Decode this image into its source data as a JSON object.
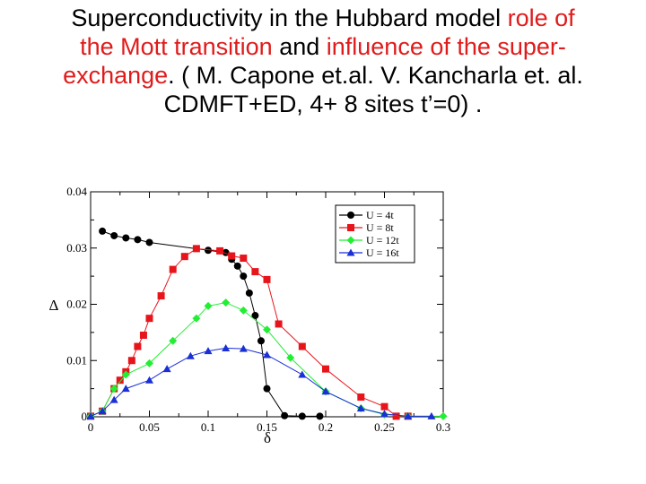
{
  "title": {
    "line1_a": "Superconductivity in the Hubbard model ",
    "line1_b": "role of",
    "line2_a": "the Mott transition",
    "line2_b": " and ",
    "line2_c": "influence of the super-",
    "line3_a": "exchange",
    "line3_b": ". ( M. Capone et.al.  V. Kancharla et. al.",
    "line4": "CDMFT+ED, 4+ 8 sites  t’=0) ."
  },
  "colors": {
    "accent_red": "#e01b1b",
    "U4": "#000000",
    "U8": "#e8141b",
    "U12": "#22ee33",
    "U16": "#1a2fd6"
  },
  "chart_data": {
    "type": "line",
    "xlabel": "δ",
    "ylabel": "Δ",
    "xlim": [
      0,
      0.3
    ],
    "ylim": [
      0,
      0.04
    ],
    "xticks": [
      0,
      0.05,
      0.1,
      0.15,
      0.2,
      0.25,
      0.3
    ],
    "xtick_labels": [
      "0",
      "0.05",
      "0.1",
      "0.15",
      "0.2",
      "0.25",
      "0.3"
    ],
    "yticks": [
      0,
      0.01,
      0.02,
      0.03,
      0.04
    ],
    "ytick_labels": [
      "0",
      "0.01",
      "0.02",
      "0.03",
      "0.04"
    ],
    "legend_position": "top-right",
    "series": [
      {
        "name": "U = 4t",
        "color": "#000000",
        "marker": "circle",
        "x": [
          0.01,
          0.02,
          0.03,
          0.04,
          0.05,
          0.1,
          0.115,
          0.12,
          0.125,
          0.13,
          0.135,
          0.14,
          0.145,
          0.15,
          0.165,
          0.18,
          0.195
        ],
        "y": [
          0.033,
          0.0322,
          0.0318,
          0.0315,
          0.031,
          0.0296,
          0.0292,
          0.028,
          0.0268,
          0.025,
          0.022,
          0.018,
          0.0135,
          0.005,
          0.0002,
          0.0001,
          0.0001
        ]
      },
      {
        "name": "U = 8t",
        "color": "#e8141b",
        "marker": "square",
        "x": [
          0,
          0.01,
          0.02,
          0.025,
          0.03,
          0.035,
          0.04,
          0.045,
          0.05,
          0.06,
          0.07,
          0.08,
          0.09,
          0.11,
          0.12,
          0.13,
          0.14,
          0.15,
          0.16,
          0.18,
          0.2,
          0.23,
          0.25,
          0.26,
          0.27
        ],
        "y": [
          0.0001,
          0.001,
          0.005,
          0.0065,
          0.008,
          0.01,
          0.0125,
          0.0145,
          0.0175,
          0.0215,
          0.0262,
          0.0285,
          0.0299,
          0.0295,
          0.0286,
          0.0282,
          0.0258,
          0.0244,
          0.0165,
          0.0125,
          0.0085,
          0.0035,
          0.0018,
          0.0001,
          0.0001
        ]
      },
      {
        "name": "U = 12t",
        "color": "#22ee33",
        "marker": "diamond",
        "x": [
          0,
          0.01,
          0.02,
          0.03,
          0.05,
          0.07,
          0.09,
          0.1,
          0.115,
          0.13,
          0.15,
          0.17,
          0.2,
          0.23,
          0.25,
          0.27,
          0.3
        ],
        "y": [
          0.0001,
          0.001,
          0.005,
          0.0075,
          0.0095,
          0.0135,
          0.0175,
          0.0197,
          0.0203,
          0.0189,
          0.0155,
          0.0105,
          0.0045,
          0.0015,
          0.0004,
          0.0001,
          0.0001
        ]
      },
      {
        "name": "U = 16t",
        "color": "#1a2fd6",
        "marker": "triangle",
        "x": [
          0,
          0.01,
          0.02,
          0.03,
          0.05,
          0.065,
          0.085,
          0.1,
          0.115,
          0.13,
          0.15,
          0.18,
          0.2,
          0.23,
          0.25,
          0.27,
          0.29
        ],
        "y": [
          0.0001,
          0.001,
          0.003,
          0.005,
          0.0065,
          0.0085,
          0.0108,
          0.0117,
          0.0122,
          0.0121,
          0.011,
          0.0075,
          0.0045,
          0.0015,
          0.0005,
          0.0001,
          0.0001
        ]
      }
    ]
  }
}
